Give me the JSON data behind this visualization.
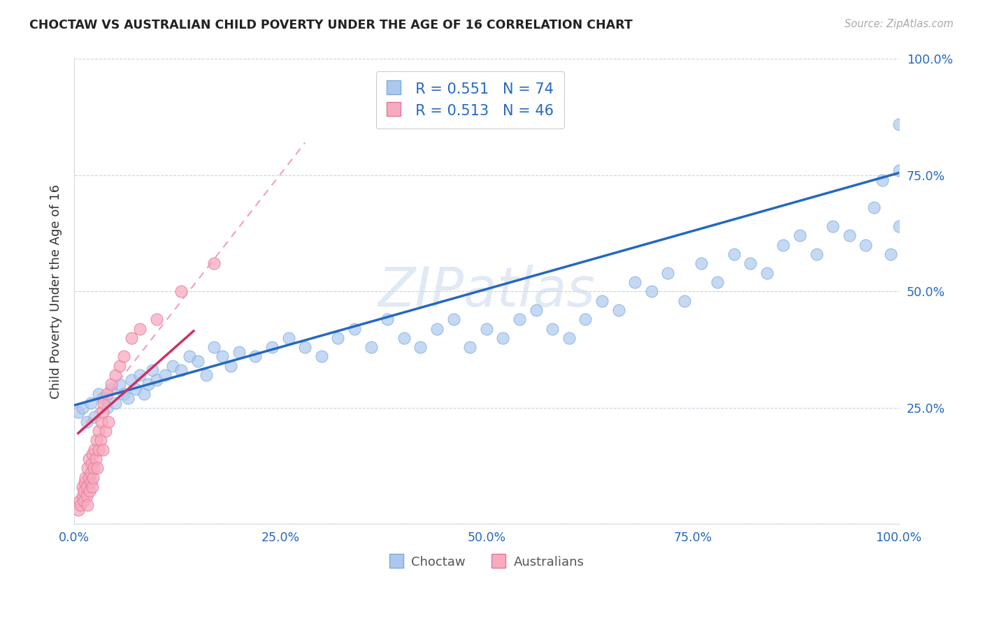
{
  "title": "CHOCTAW VS AUSTRALIAN CHILD POVERTY UNDER THE AGE OF 16 CORRELATION CHART",
  "source": "Source: ZipAtlas.com",
  "ylabel": "Child Poverty Under the Age of 16",
  "xlim": [
    0.0,
    1.0
  ],
  "ylim": [
    0.0,
    1.0
  ],
  "xticks": [
    0.0,
    0.25,
    0.5,
    0.75,
    1.0
  ],
  "yticks": [
    0.0,
    0.25,
    0.5,
    0.75,
    1.0
  ],
  "xticklabels": [
    "0.0%",
    "25.0%",
    "50.0%",
    "75.0%",
    "100.0%"
  ],
  "yticklabels": [
    "",
    "25.0%",
    "50.0%",
    "75.0%",
    "100.0%"
  ],
  "choctaw_color": "#adc8f0",
  "choctaw_edge": "#7aaad8",
  "australian_color": "#f8aabe",
  "australian_edge": "#e07898",
  "trend_blue": "#2468c0",
  "trend_pink_solid": "#d03060",
  "trend_pink_dash": "#f0a0b8",
  "watermark_color": "#c8d8ec",
  "legend_R_choctaw": "R = 0.551",
  "legend_N_choctaw": "N = 74",
  "legend_R_australian": "R = 0.513",
  "legend_N_australian": "N = 46",
  "legend_text_color": "#2468c0",
  "tick_color": "#2468c0",
  "choctaw_x": [
    0.005,
    0.01,
    0.015,
    0.02,
    0.025,
    0.03,
    0.035,
    0.04,
    0.045,
    0.05,
    0.055,
    0.06,
    0.065,
    0.07,
    0.075,
    0.08,
    0.085,
    0.09,
    0.095,
    0.1,
    0.11,
    0.12,
    0.13,
    0.14,
    0.15,
    0.16,
    0.17,
    0.18,
    0.19,
    0.2,
    0.22,
    0.24,
    0.26,
    0.28,
    0.3,
    0.32,
    0.34,
    0.36,
    0.38,
    0.4,
    0.42,
    0.44,
    0.46,
    0.48,
    0.5,
    0.52,
    0.54,
    0.56,
    0.58,
    0.6,
    0.62,
    0.64,
    0.66,
    0.68,
    0.7,
    0.72,
    0.74,
    0.76,
    0.78,
    0.8,
    0.82,
    0.84,
    0.86,
    0.88,
    0.9,
    0.92,
    0.94,
    0.96,
    0.97,
    0.98,
    0.99,
    1.0,
    1.0,
    1.0
  ],
  "choctaw_y": [
    0.24,
    0.25,
    0.22,
    0.26,
    0.23,
    0.28,
    0.27,
    0.25,
    0.29,
    0.26,
    0.3,
    0.28,
    0.27,
    0.31,
    0.29,
    0.32,
    0.28,
    0.3,
    0.33,
    0.31,
    0.32,
    0.34,
    0.33,
    0.36,
    0.35,
    0.32,
    0.38,
    0.36,
    0.34,
    0.37,
    0.36,
    0.38,
    0.4,
    0.38,
    0.36,
    0.4,
    0.42,
    0.38,
    0.44,
    0.4,
    0.38,
    0.42,
    0.44,
    0.38,
    0.42,
    0.4,
    0.44,
    0.46,
    0.42,
    0.4,
    0.44,
    0.48,
    0.46,
    0.52,
    0.5,
    0.54,
    0.48,
    0.56,
    0.52,
    0.58,
    0.56,
    0.54,
    0.6,
    0.62,
    0.58,
    0.64,
    0.62,
    0.6,
    0.68,
    0.74,
    0.58,
    0.86,
    0.76,
    0.64
  ],
  "australian_x": [
    0.005,
    0.007,
    0.008,
    0.01,
    0.01,
    0.012,
    0.012,
    0.013,
    0.014,
    0.015,
    0.015,
    0.016,
    0.016,
    0.018,
    0.018,
    0.019,
    0.02,
    0.02,
    0.021,
    0.022,
    0.022,
    0.023,
    0.024,
    0.025,
    0.026,
    0.027,
    0.028,
    0.03,
    0.03,
    0.032,
    0.033,
    0.035,
    0.035,
    0.036,
    0.038,
    0.04,
    0.042,
    0.045,
    0.05,
    0.055,
    0.06,
    0.07,
    0.08,
    0.1,
    0.13,
    0.17
  ],
  "australian_y": [
    0.03,
    0.05,
    0.04,
    0.06,
    0.08,
    0.05,
    0.07,
    0.09,
    0.1,
    0.06,
    0.08,
    0.12,
    0.04,
    0.1,
    0.14,
    0.07,
    0.09,
    0.11,
    0.13,
    0.08,
    0.15,
    0.1,
    0.12,
    0.16,
    0.14,
    0.18,
    0.12,
    0.2,
    0.16,
    0.18,
    0.22,
    0.24,
    0.16,
    0.26,
    0.2,
    0.28,
    0.22,
    0.3,
    0.32,
    0.34,
    0.36,
    0.4,
    0.42,
    0.44,
    0.5,
    0.56
  ],
  "trend_blue_x0": 0.0,
  "trend_blue_y0": 0.255,
  "trend_blue_x1": 1.0,
  "trend_blue_y1": 0.755,
  "trend_pink_x0_solid": 0.005,
  "trend_pink_y0_solid": 0.195,
  "trend_pink_x1_solid": 0.145,
  "trend_pink_y1_solid": 0.415,
  "trend_pink_x0_dash": 0.005,
  "trend_pink_y0_dash": 0.195,
  "trend_pink_x1_dash": 0.28,
  "trend_pink_y1_dash": 0.82
}
